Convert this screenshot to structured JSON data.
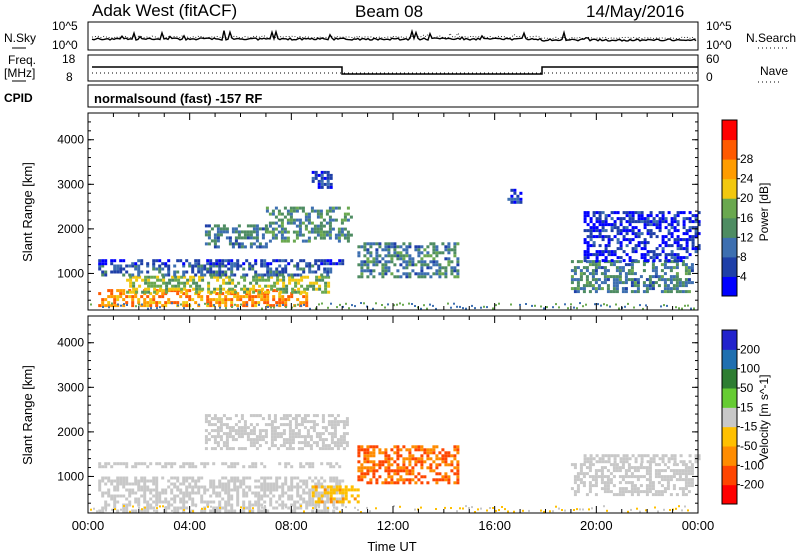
{
  "header": {
    "title": "Adak West (fitACF)",
    "beam": "Beam 08",
    "date": "14/May/2016"
  },
  "top_panels": {
    "nsky": {
      "left_label": "N.Sky",
      "right_label": "N.Search",
      "left_ticks": [
        "10^5",
        "10^0"
      ],
      "right_ticks": [
        "10^5",
        "10^0"
      ]
    },
    "freq": {
      "left_label_line1": "Freq.",
      "left_label_line2": "[MHz]",
      "right_label": "Nave",
      "left_ticks": [
        "18",
        "8"
      ],
      "right_ticks": [
        "60",
        "0"
      ]
    },
    "cpid": {
      "label": "CPID",
      "text": "normalsound (fast) -157 RF"
    }
  },
  "colors": {
    "power_scale": [
      "#0000ff",
      "#1e3fa8",
      "#3d6fb0",
      "#4e8c62",
      "#6aa84f",
      "#f2c80f",
      "#ff9c00",
      "#ff5a00",
      "#ff0000"
    ],
    "velocity_scale": [
      "#ff0000",
      "#ff4500",
      "#ff8c00",
      "#ffc000",
      "#c8c8c8",
      "#c8c8c8",
      "#66cc33",
      "#2e7d32",
      "#1f6fb0",
      "#1a3aa0",
      "#2222cc"
    ],
    "ground_scatter": "#bebebe"
  },
  "chart_data": [
    {
      "type": "heatmap",
      "name": "power",
      "xlabel": "",
      "ylabel": "Slant Range [km]",
      "colorbar_label": "Power [dB]",
      "colorbar_ticks": [
        "28",
        "24",
        "20",
        "16",
        "12",
        "8",
        "4"
      ],
      "x_range_hours": [
        0,
        24
      ],
      "y_range_km": [
        180,
        4600
      ],
      "y_ticks": [
        "4000",
        "3000",
        "2000",
        "1000"
      ],
      "grid": false,
      "regions": [
        {
          "t0": 0.4,
          "t1": 8.6,
          "r0": 250,
          "r1": 650,
          "value": 27
        },
        {
          "t0": 1.5,
          "t1": 9.5,
          "r0": 600,
          "r1": 950,
          "value": 19
        },
        {
          "t0": 0.4,
          "t1": 9.5,
          "r0": 950,
          "r1": 1200,
          "value": 9
        },
        {
          "t0": 0.4,
          "t1": 10.0,
          "r0": 1200,
          "r1": 1320,
          "value": 5
        },
        {
          "t0": 4.6,
          "t1": 7.0,
          "r0": 1600,
          "r1": 2100,
          "value": 11
        },
        {
          "t0": 7.0,
          "t1": 10.4,
          "r0": 1700,
          "r1": 2500,
          "value": 13
        },
        {
          "t0": 8.8,
          "t1": 9.6,
          "r0": 2900,
          "r1": 3300,
          "value": 6
        },
        {
          "t0": 10.6,
          "t1": 14.6,
          "r0": 900,
          "r1": 1700,
          "value": 12
        },
        {
          "t0": 16.5,
          "t1": 17.0,
          "r0": 2600,
          "r1": 2900,
          "value": 5
        },
        {
          "t0": 19.0,
          "t1": 23.8,
          "r0": 600,
          "r1": 1300,
          "value": 12
        },
        {
          "t0": 19.5,
          "t1": 24.0,
          "r0": 1300,
          "r1": 2400,
          "value": 4
        }
      ]
    },
    {
      "type": "heatmap",
      "name": "velocity",
      "xlabel": "Time UT",
      "ylabel": "Slant Range [km]",
      "colorbar_label": "Velocity [m s^-1]",
      "colorbar_ticks": [
        "200",
        "100",
        "50",
        "15",
        "-15",
        "-50",
        "-100",
        "-200"
      ],
      "x_range_hours": [
        0,
        24
      ],
      "x_ticks": [
        "00:00",
        "04:00",
        "08:00",
        "12:00",
        "16:00",
        "20:00",
        "00:00"
      ],
      "y_range_km": [
        180,
        4600
      ],
      "y_ticks": [
        "4000",
        "3000",
        "2000",
        "1000"
      ],
      "grid": false,
      "regions": [
        {
          "t0": 0.4,
          "t1": 10.0,
          "r0": 250,
          "r1": 1000,
          "value": 0
        },
        {
          "t0": 0.4,
          "t1": 10.0,
          "r0": 1200,
          "r1": 1320,
          "value": 0
        },
        {
          "t0": 4.6,
          "t1": 10.2,
          "r0": 1600,
          "r1": 2400,
          "value": 0
        },
        {
          "t0": 10.6,
          "t1": 14.6,
          "r0": 850,
          "r1": 1700,
          "value": -75
        },
        {
          "t0": 8.8,
          "t1": 10.6,
          "r0": 400,
          "r1": 800,
          "value": -40
        },
        {
          "t0": 19.0,
          "t1": 23.8,
          "r0": 600,
          "r1": 1300,
          "value": 0
        },
        {
          "t0": 19.5,
          "t1": 24.0,
          "r0": 1300,
          "r1": 1500,
          "value": 0
        }
      ]
    }
  ]
}
